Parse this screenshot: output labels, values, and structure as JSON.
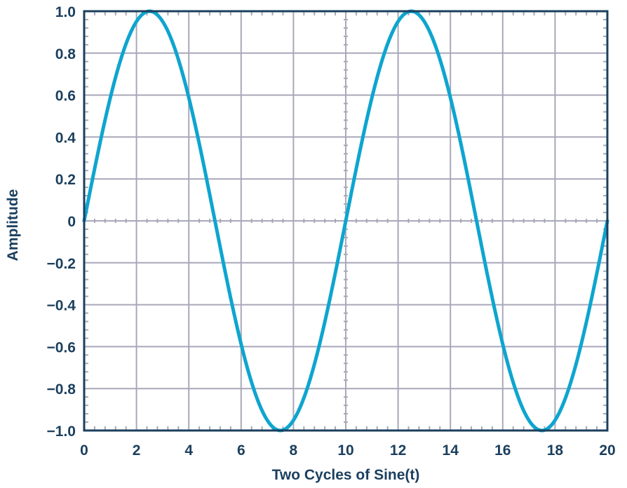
{
  "chart_data": {
    "type": "line",
    "title": "",
    "xlabel": "Two Cycles of Sine(t)",
    "ylabel": "Amplitude",
    "xlim": [
      0,
      20
    ],
    "ylim": [
      -1.0,
      1.0
    ],
    "grid": true,
    "x_ticks": [
      "0",
      "2",
      "4",
      "6",
      "8",
      "10",
      "12",
      "14",
      "16",
      "18",
      "20"
    ],
    "y_ticks": [
      "−1.0",
      "−0.8",
      "−0.6",
      "−0.4",
      "−0.2",
      "0",
      "0.2",
      "0.4",
      "0.6",
      "0.8",
      "1.0"
    ],
    "series": [
      {
        "function": "sin(2*pi*x/10)",
        "color": "#0ea5cf",
        "x": [
          0,
          0.5,
          1,
          1.5,
          2,
          2.5,
          3,
          3.5,
          4,
          4.5,
          5,
          5.5,
          6,
          6.5,
          7,
          7.5,
          8,
          8.5,
          9,
          9.5,
          10,
          10.5,
          11,
          11.5,
          12,
          12.5,
          13,
          13.5,
          14,
          14.5,
          15,
          15.5,
          16,
          16.5,
          17,
          17.5,
          18,
          18.5,
          19,
          19.5,
          20
        ],
        "y": [
          0,
          0.309,
          0.588,
          0.809,
          0.951,
          1.0,
          0.951,
          0.809,
          0.588,
          0.309,
          0,
          -0.309,
          -0.588,
          -0.809,
          -0.951,
          -1.0,
          -0.951,
          -0.809,
          -0.588,
          -0.309,
          0,
          0.309,
          0.588,
          0.809,
          0.951,
          1.0,
          0.951,
          0.809,
          0.588,
          0.309,
          0,
          -0.309,
          -0.588,
          -0.809,
          -0.951,
          -1.0,
          -0.951,
          -0.809,
          -0.588,
          -0.309,
          0
        ]
      }
    ],
    "colors": {
      "frame": "#1b3f5e",
      "grid": "#a8a8ba",
      "text": "#1b3f5e",
      "line": "#0ea5cf"
    }
  }
}
